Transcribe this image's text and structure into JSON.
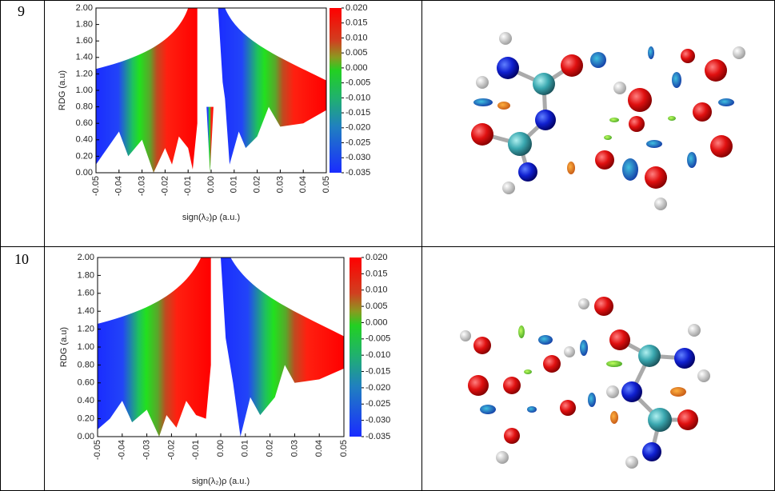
{
  "table": {
    "rows": [
      {
        "number": "9",
        "plot": {
          "type": "scatter",
          "xlabel": "sign(λ₂)ρ (a.u.)",
          "ylabel": "RDG (a.u)",
          "xlim": [
            -0.05,
            0.05
          ],
          "xticks": [
            {
              "value": -0.05,
              "label": "-0.05"
            },
            {
              "value": -0.04,
              "label": "-0.04"
            },
            {
              "value": -0.03,
              "label": "-0.03"
            },
            {
              "value": -0.02,
              "label": "-0.02"
            },
            {
              "value": -0.01,
              "label": "-0.01"
            },
            {
              "value": 0,
              "label": "0.00"
            },
            {
              "value": 0.01,
              "label": "0.01"
            },
            {
              "value": 0.02,
              "label": "0.02"
            },
            {
              "value": 0.03,
              "label": "0.03"
            },
            {
              "value": 0.04,
              "label": "0.04"
            },
            {
              "value": 0.05,
              "label": "0.05"
            }
          ],
          "ylim": [
            0,
            2
          ],
          "yticks": [
            {
              "value": 0,
              "label": "0.00"
            },
            {
              "value": 0.2,
              "label": "0.20"
            },
            {
              "value": 0.4,
              "label": "0.40"
            },
            {
              "value": 0.6,
              "label": "0.60"
            },
            {
              "value": 0.8,
              "label": "0.80"
            },
            {
              "value": 1,
              "label": "1.00"
            },
            {
              "value": 1.2,
              "label": "1.20"
            },
            {
              "value": 1.4,
              "label": "1.40"
            },
            {
              "value": 1.6,
              "label": "1.60"
            },
            {
              "value": 1.8,
              "label": "1.80"
            },
            {
              "value": 2,
              "label": "2.00"
            }
          ],
          "colorbar": {
            "lim": [
              -0.035,
              0.02
            ],
            "ticks": [
              {
                "value": 0.02,
                "label": "0.020"
              },
              {
                "value": 0.015,
                "label": "0.015"
              },
              {
                "value": 0.01,
                "label": "0.010"
              },
              {
                "value": 0.005,
                "label": "0.005"
              },
              {
                "value": 0,
                "label": "0.000"
              },
              {
                "value": -0.005,
                "label": "-0.005"
              },
              {
                "value": -0.01,
                "label": "-0.010"
              },
              {
                "value": -0.015,
                "label": "-0.015"
              },
              {
                "value": -0.02,
                "label": "-0.020"
              },
              {
                "value": -0.025,
                "label": "-0.025"
              },
              {
                "value": -0.03,
                "label": "-0.030"
              },
              {
                "value": -0.035,
                "label": "-0.035"
              }
            ]
          }
        }
      },
      {
        "number": "10",
        "plot": {
          "type": "scatter",
          "xlabel": "sign(λ₂)ρ (a.u.)",
          "ylabel": "RDG (a.u)",
          "xlim": [
            -0.05,
            0.05
          ],
          "xticks": [
            {
              "value": -0.05,
              "label": "-0.05"
            },
            {
              "value": -0.04,
              "label": "-0.04"
            },
            {
              "value": -0.03,
              "label": "-0.03"
            },
            {
              "value": -0.02,
              "label": "-0.02"
            },
            {
              "value": -0.01,
              "label": "-0.01"
            },
            {
              "value": 0,
              "label": "0.00"
            },
            {
              "value": 0.01,
              "label": "0.01"
            },
            {
              "value": 0.02,
              "label": "0.02"
            },
            {
              "value": 0.03,
              "label": "0.03"
            },
            {
              "value": 0.04,
              "label": "0.04"
            },
            {
              "value": 0.05,
              "label": "0.05"
            }
          ],
          "ylim": [
            0,
            2
          ],
          "yticks": [
            {
              "value": 0,
              "label": "0.00"
            },
            {
              "value": 0.2,
              "label": "0.20"
            },
            {
              "value": 0.4,
              "label": "0.40"
            },
            {
              "value": 0.6,
              "label": "0.60"
            },
            {
              "value": 0.8,
              "label": "0.80"
            },
            {
              "value": 1,
              "label": "1.00"
            },
            {
              "value": 1.2,
              "label": "1.20"
            },
            {
              "value": 1.4,
              "label": "1.40"
            },
            {
              "value": 1.6,
              "label": "1.60"
            },
            {
              "value": 1.8,
              "label": "1.80"
            },
            {
              "value": 2,
              "label": "2.00"
            }
          ],
          "colorbar": {
            "lim": [
              -0.035,
              0.02
            ],
            "ticks": [
              {
                "value": 0.02,
                "label": "0.020"
              },
              {
                "value": 0.015,
                "label": "0.015"
              },
              {
                "value": 0.01,
                "label": "0.010"
              },
              {
                "value": 0.005,
                "label": "0.005"
              },
              {
                "value": 0,
                "label": "0.000"
              },
              {
                "value": -0.005,
                "label": "-0.005"
              },
              {
                "value": -0.01,
                "label": "-0.010"
              },
              {
                "value": -0.015,
                "label": "-0.015"
              },
              {
                "value": -0.02,
                "label": "-0.020"
              },
              {
                "value": -0.025,
                "label": "-0.025"
              },
              {
                "value": -0.03,
                "label": "-0.030"
              },
              {
                "value": -0.035,
                "label": "-0.035"
              }
            ]
          }
        }
      }
    ]
  }
}
